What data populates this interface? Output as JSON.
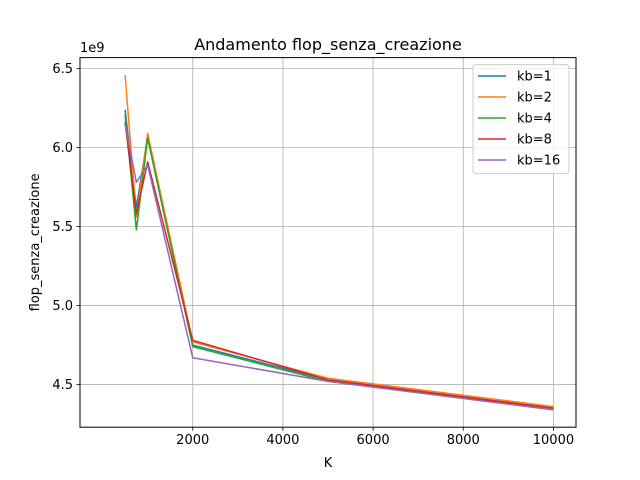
{
  "chart_data": {
    "type": "line",
    "title": "Andamento flop_senza_creazione",
    "xlabel": "K",
    "ylabel": "flop_senza_creazione",
    "y_offset_text": "1e9",
    "y_scale": 1000000000,
    "xlim": [
      -500,
      10500
    ],
    "ylim": [
      4.23,
      6.57
    ],
    "xticks": [
      2000,
      4000,
      6000,
      8000,
      10000
    ],
    "xtick_labels": [
      "2000",
      "4000",
      "6000",
      "8000",
      "10000"
    ],
    "yticks": [
      4.5,
      5.0,
      5.5,
      6.0,
      6.5
    ],
    "ytick_labels": [
      "4.5",
      "5.0",
      "5.5",
      "6.0",
      "6.5"
    ],
    "grid": true,
    "legend_position": "top-right",
    "x": [
      500,
      750,
      1000,
      2000,
      5000,
      10000
    ],
    "series": [
      {
        "name": "kb=1",
        "color": "#1f77b4",
        "values": [
          6.24,
          5.62,
          6.07,
          4.75,
          4.53,
          4.35
        ]
      },
      {
        "name": "kb=2",
        "color": "#ff7f0e",
        "values": [
          6.46,
          5.56,
          6.09,
          4.77,
          4.54,
          4.36
        ]
      },
      {
        "name": "kb=4",
        "color": "#2ca02c",
        "values": [
          6.21,
          5.48,
          6.06,
          4.74,
          4.52,
          4.35
        ]
      },
      {
        "name": "kb=8",
        "color": "#d62728",
        "values": [
          6.16,
          5.58,
          5.91,
          4.78,
          4.53,
          4.35
        ]
      },
      {
        "name": "kb=16",
        "color": "#9467bd",
        "values": [
          6.15,
          5.78,
          5.89,
          4.67,
          4.52,
          4.34
        ]
      }
    ]
  }
}
